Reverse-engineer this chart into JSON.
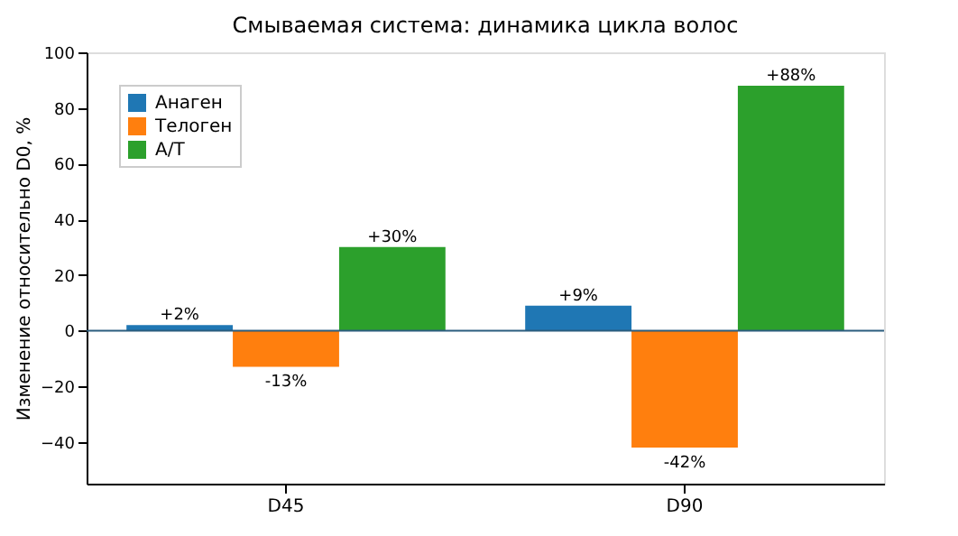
{
  "chart_data": {
    "type": "bar",
    "title": "Смываемая система: динамика цикла волос",
    "ylabel": "Изменение относительно D0, %",
    "categories": [
      "D45",
      "D90"
    ],
    "series": [
      {
        "name": "Анаген",
        "color": "#1f77b4",
        "values": [
          2,
          9
        ],
        "value_labels": [
          "+2%",
          "+9%"
        ]
      },
      {
        "name": "Телоген",
        "color": "#ff7f0e",
        "values": [
          -13,
          -42
        ],
        "value_labels": [
          "-13%",
          "-42%"
        ]
      },
      {
        "name": "А/Т",
        "color": "#2ca02c",
        "values": [
          30,
          88
        ],
        "value_labels": [
          "+30%",
          "+88%"
        ]
      }
    ],
    "ylim": [
      -55,
      100
    ],
    "yticks": [
      -40,
      -20,
      0,
      20,
      40,
      60,
      80,
      100
    ],
    "ref_lines": [
      {
        "axis": "y",
        "value": 0,
        "color": "#2b5d7e"
      }
    ],
    "legend": "top left",
    "grid": false
  }
}
